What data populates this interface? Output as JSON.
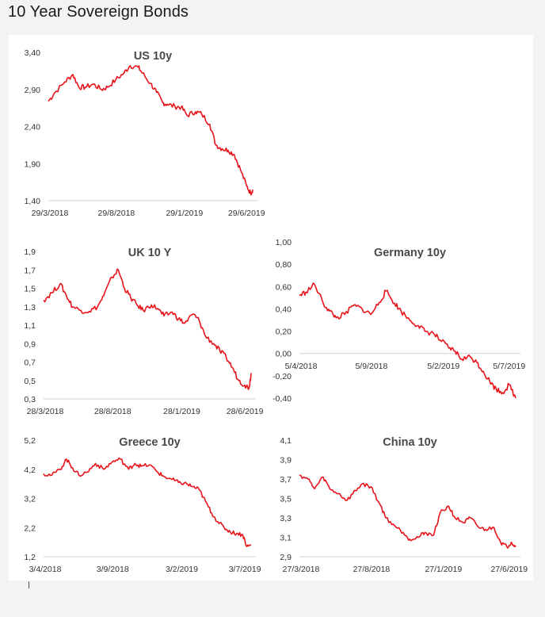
{
  "page_title": "10 Year Sovereign Bonds",
  "line_color": "#e8141b",
  "chart_data": [
    {
      "type": "line",
      "title": "US 10y",
      "y_ticks": [
        "3,40",
        "2,90",
        "2,40",
        "1,90",
        "1,40"
      ],
      "x_ticks": [
        "29/3/2018",
        "29/8/2018",
        "29/1/2019",
        "29/6/2019"
      ],
      "ylim": [
        1.4,
        3.4
      ],
      "series": [
        {
          "x": [
            0,
            0.03,
            0.08,
            0.12,
            0.15,
            0.18,
            0.22,
            0.26,
            0.29,
            0.33,
            0.37,
            0.4,
            0.44,
            0.46,
            0.5,
            0.53,
            0.56,
            0.58,
            0.62,
            0.65,
            0.68,
            0.72,
            0.75,
            0.79,
            0.82,
            0.85,
            0.88,
            0.91,
            0.94,
            0.97,
            0.99,
            1.0
          ],
          "y": [
            2.74,
            2.85,
            3.0,
            3.1,
            2.93,
            2.93,
            2.97,
            2.9,
            2.93,
            3.03,
            3.12,
            3.22,
            3.2,
            3.12,
            2.98,
            2.86,
            2.72,
            2.7,
            2.67,
            2.66,
            2.55,
            2.6,
            2.57,
            2.43,
            2.15,
            2.1,
            2.08,
            2.02,
            1.82,
            1.6,
            1.5,
            1.55
          ]
        }
      ],
      "x_axis_at": 1.4
    },
    {
      "type": "line",
      "title": "UK 10 Y",
      "y_ticks": [
        "1,9",
        "1,7",
        "1,5",
        "1,3",
        "1,1",
        "0,9",
        "0,7",
        "0,5",
        "0,3"
      ],
      "x_ticks": [
        "28/3/2018",
        "28/8/2018",
        "28/1/2019",
        "28/6/2019"
      ],
      "ylim": [
        0.3,
        1.9
      ],
      "series": [
        {
          "x": [
            0,
            0.04,
            0.08,
            0.11,
            0.14,
            0.18,
            0.22,
            0.26,
            0.29,
            0.33,
            0.36,
            0.39,
            0.42,
            0.45,
            0.48,
            0.52,
            0.55,
            0.58,
            0.62,
            0.65,
            0.68,
            0.72,
            0.75,
            0.78,
            0.82,
            0.85,
            0.88,
            0.91,
            0.94,
            0.97,
            0.99,
            1.0
          ],
          "y": [
            1.37,
            1.45,
            1.55,
            1.42,
            1.3,
            1.26,
            1.25,
            1.3,
            1.42,
            1.62,
            1.7,
            1.5,
            1.4,
            1.32,
            1.26,
            1.32,
            1.28,
            1.2,
            1.24,
            1.17,
            1.12,
            1.22,
            1.15,
            0.98,
            0.9,
            0.82,
            0.75,
            0.64,
            0.5,
            0.45,
            0.42,
            0.58
          ]
        }
      ],
      "x_axis_at": 0.3
    },
    {
      "type": "line",
      "title": "Germany 10y",
      "y_ticks": [
        "1,00",
        "0,80",
        "0,60",
        "0,40",
        "0,20",
        "0,00",
        "-0,20",
        "-0,40"
      ],
      "x_ticks": [
        "5/4/2018",
        "5/9/2018",
        "5/2/2019",
        "5/7/2019"
      ],
      "ylim": [
        -0.4,
        1.0
      ],
      "series": [
        {
          "x": [
            0,
            0.03,
            0.07,
            0.11,
            0.14,
            0.17,
            0.21,
            0.25,
            0.29,
            0.33,
            0.37,
            0.4,
            0.44,
            0.47,
            0.51,
            0.55,
            0.58,
            0.62,
            0.65,
            0.69,
            0.72,
            0.75,
            0.79,
            0.82,
            0.85,
            0.88,
            0.91,
            0.94,
            0.97,
            1.0
          ],
          "y": [
            0.52,
            0.55,
            0.62,
            0.45,
            0.38,
            0.32,
            0.35,
            0.43,
            0.4,
            0.35,
            0.46,
            0.56,
            0.45,
            0.38,
            0.3,
            0.25,
            0.2,
            0.18,
            0.12,
            0.05,
            0.02,
            -0.05,
            -0.03,
            -0.08,
            -0.16,
            -0.25,
            -0.32,
            -0.35,
            -0.28,
            -0.4
          ]
        }
      ],
      "x_axis_at": 0.0
    },
    {
      "type": "line",
      "title": "Greece 10y",
      "y_ticks": [
        "5,2",
        "4,2",
        "3,2",
        "2,2",
        "1,2"
      ],
      "x_ticks": [
        "3/4/2018",
        "3/9/2018",
        "3/2/2019",
        "3/7/2019"
      ],
      "ylim": [
        1.2,
        5.2
      ],
      "series": [
        {
          "x": [
            0,
            0.04,
            0.08,
            0.11,
            0.14,
            0.17,
            0.21,
            0.25,
            0.29,
            0.33,
            0.37,
            0.41,
            0.44,
            0.47,
            0.51,
            0.55,
            0.58,
            0.62,
            0.65,
            0.69,
            0.72,
            0.75,
            0.78,
            0.81,
            0.84,
            0.87,
            0.9,
            0.93,
            0.96,
            0.98,
            1.0
          ],
          "y": [
            4.05,
            4.0,
            4.2,
            4.55,
            4.25,
            4.0,
            4.1,
            4.4,
            4.2,
            4.45,
            4.55,
            4.2,
            4.4,
            4.3,
            4.35,
            4.1,
            3.95,
            3.85,
            3.75,
            3.7,
            3.6,
            3.5,
            3.1,
            2.7,
            2.4,
            2.2,
            2.05,
            2.0,
            1.95,
            1.55,
            1.6
          ]
        }
      ],
      "x_axis_at": 1.2
    },
    {
      "type": "line",
      "title": "China 10y",
      "y_ticks": [
        "4,1",
        "3,9",
        "3,7",
        "3,5",
        "3,3",
        "3,1",
        "2,9"
      ],
      "x_ticks": [
        "27/3/2018",
        "27/8/2018",
        "27/1/2019",
        "27/6/2019"
      ],
      "ylim": [
        2.9,
        4.1
      ],
      "series": [
        {
          "x": [
            0,
            0.04,
            0.07,
            0.11,
            0.14,
            0.18,
            0.22,
            0.26,
            0.29,
            0.33,
            0.37,
            0.4,
            0.44,
            0.48,
            0.51,
            0.55,
            0.58,
            0.62,
            0.65,
            0.69,
            0.72,
            0.76,
            0.79,
            0.83,
            0.86,
            0.9,
            0.93,
            0.96,
            0.98,
            1.0
          ],
          "y": [
            3.74,
            3.7,
            3.6,
            3.72,
            3.6,
            3.55,
            3.48,
            3.58,
            3.65,
            3.62,
            3.45,
            3.3,
            3.22,
            3.15,
            3.08,
            3.1,
            3.15,
            3.12,
            3.35,
            3.42,
            3.3,
            3.25,
            3.3,
            3.2,
            3.18,
            3.2,
            3.05,
            3.0,
            3.05,
            3.0
          ]
        }
      ],
      "x_axis_at": 2.9
    }
  ]
}
